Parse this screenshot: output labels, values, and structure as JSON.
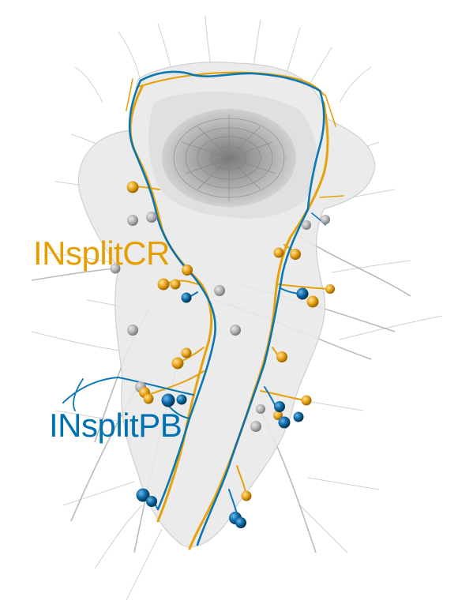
{
  "labels": {
    "cr": "INsplitCR",
    "pb": "INsplitPB"
  },
  "colors": {
    "cr": "#E69F00",
    "pb": "#0072B2",
    "background_neurons": "#bdbdbd",
    "tissue": "#e6e6e6",
    "neuropil": "#8c8c8c"
  }
}
